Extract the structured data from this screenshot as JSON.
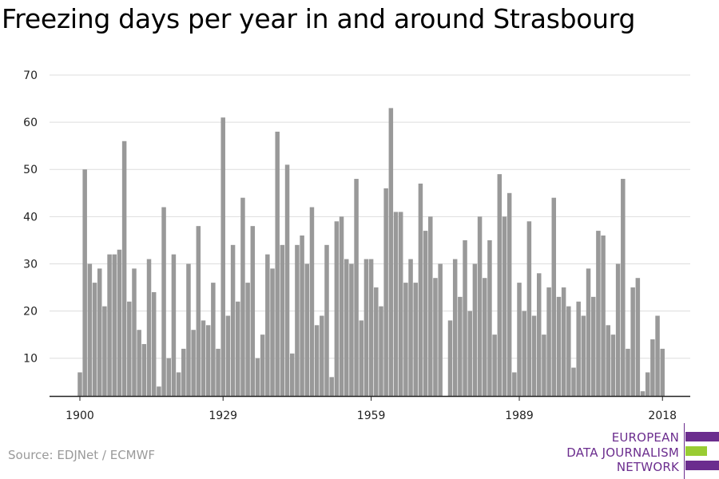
{
  "title": "Freezing days per year in and around Strasbourg",
  "source": "Source: EDJNet / ECMWF",
  "logo": {
    "lines": [
      "EUROPEAN",
      "DATA JOURNALISM",
      "NETWORK"
    ],
    "colors": {
      "purple": "#6b2d8e",
      "green": "#99cc33"
    }
  },
  "colors": {
    "bar": "#999999",
    "grid": "#dddddd",
    "axis": "#222222"
  },
  "chart_data": {
    "type": "bar",
    "title": "Freezing days per year in and around Strasbourg",
    "xlabel": "",
    "ylabel": "",
    "ylim": [
      2,
      70
    ],
    "yticks": [
      10,
      20,
      30,
      40,
      50,
      60,
      70
    ],
    "xticks": [
      1900,
      1929,
      1959,
      1989,
      2018
    ],
    "grid": true,
    "legend": "none",
    "x": [
      1900,
      1901,
      1902,
      1903,
      1904,
      1905,
      1906,
      1907,
      1908,
      1909,
      1910,
      1911,
      1912,
      1913,
      1914,
      1915,
      1916,
      1917,
      1918,
      1919,
      1920,
      1921,
      1922,
      1923,
      1924,
      1925,
      1926,
      1927,
      1928,
      1929,
      1930,
      1931,
      1932,
      1933,
      1934,
      1935,
      1936,
      1937,
      1938,
      1939,
      1940,
      1941,
      1942,
      1943,
      1944,
      1945,
      1946,
      1947,
      1948,
      1949,
      1950,
      1951,
      1952,
      1953,
      1954,
      1955,
      1956,
      1957,
      1958,
      1959,
      1960,
      1961,
      1962,
      1963,
      1964,
      1965,
      1966,
      1967,
      1968,
      1969,
      1970,
      1971,
      1972,
      1973,
      1974,
      1975,
      1976,
      1977,
      1978,
      1979,
      1980,
      1981,
      1982,
      1983,
      1984,
      1985,
      1986,
      1987,
      1988,
      1989,
      1990,
      1991,
      1992,
      1993,
      1994,
      1995,
      1996,
      1997,
      1998,
      1999,
      2000,
      2001,
      2002,
      2003,
      2004,
      2005,
      2006,
      2007,
      2008,
      2009,
      2010,
      2011,
      2012,
      2013,
      2014,
      2015,
      2016,
      2017,
      2018
    ],
    "values": [
      7,
      50,
      30,
      26,
      29,
      21,
      32,
      32,
      33,
      56,
      22,
      29,
      16,
      13,
      31,
      24,
      4,
      42,
      10,
      32,
      7,
      12,
      30,
      16,
      38,
      18,
      17,
      26,
      12,
      61,
      19,
      34,
      22,
      44,
      26,
      38,
      10,
      15,
      32,
      29,
      58,
      34,
      51,
      11,
      34,
      36,
      30,
      42,
      17,
      19,
      34,
      6,
      39,
      40,
      31,
      30,
      48,
      18,
      31,
      31,
      25,
      21,
      46,
      63,
      41,
      41,
      26,
      31,
      26,
      47,
      37,
      40,
      27,
      30,
      2,
      18,
      31,
      23,
      35,
      20,
      30,
      40,
      27,
      35,
      15,
      49,
      40,
      45,
      7,
      26,
      20,
      39,
      19,
      28,
      15,
      25,
      44,
      23,
      25,
      21,
      8,
      22,
      19,
      29,
      23,
      37,
      36,
      17,
      15,
      30,
      48,
      12,
      25,
      27,
      3,
      7,
      14,
      19,
      12
    ]
  }
}
